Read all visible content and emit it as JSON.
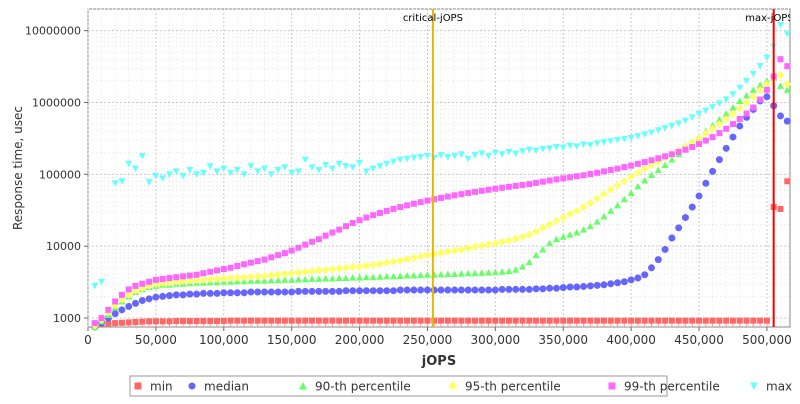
{
  "chart_data": {
    "type": "scatter",
    "title": "",
    "xlabel": "jOPS",
    "ylabel": "Response time, usec",
    "x_scale": "linear",
    "y_scale": "log",
    "xlim": [
      0,
      517000
    ],
    "ylim": [
      750,
      20000000
    ],
    "x_ticks": [
      0,
      50000,
      100000,
      150000,
      200000,
      250000,
      300000,
      350000,
      400000,
      450000,
      500000
    ],
    "x_tick_labels": [
      "0",
      "50,000",
      "100,000",
      "150,000",
      "200,000",
      "250,000",
      "300,000",
      "350,000",
      "400,000",
      "450,000",
      "500,000"
    ],
    "y_ticks": [
      1000,
      10000,
      100000,
      1000000,
      10000000
    ],
    "y_tick_labels": [
      "1000",
      "10000",
      "100000",
      "1000000",
      "10000000"
    ],
    "grid": true,
    "legend_position": "bottom",
    "markers": [
      {
        "label": "critical-jOPS",
        "x": 254000,
        "color": "#e6b800"
      },
      {
        "label": "max-jOPS",
        "x": 505000,
        "color": "#ff0000"
      }
    ],
    "x": [
      5000,
      10000,
      15000,
      20000,
      25000,
      30000,
      35000,
      40000,
      45000,
      50000,
      55000,
      60000,
      65000,
      70000,
      75000,
      80000,
      85000,
      90000,
      95000,
      100000,
      105000,
      110000,
      115000,
      120000,
      125000,
      130000,
      135000,
      140000,
      145000,
      150000,
      155000,
      160000,
      165000,
      170000,
      175000,
      180000,
      185000,
      190000,
      195000,
      200000,
      205000,
      210000,
      215000,
      220000,
      225000,
      230000,
      235000,
      240000,
      245000,
      250000,
      255000,
      260000,
      265000,
      270000,
      275000,
      280000,
      285000,
      290000,
      295000,
      300000,
      305000,
      310000,
      315000,
      320000,
      325000,
      330000,
      335000,
      340000,
      345000,
      350000,
      355000,
      360000,
      365000,
      370000,
      375000,
      380000,
      385000,
      390000,
      395000,
      400000,
      405000,
      410000,
      415000,
      420000,
      425000,
      430000,
      435000,
      440000,
      445000,
      450000,
      455000,
      460000,
      465000,
      470000,
      475000,
      480000,
      485000,
      490000,
      495000,
      500000,
      505000,
      510000,
      515000
    ],
    "series": [
      {
        "name": "min",
        "color": "#ff6666",
        "shape": "square",
        "values": [
          800,
          820,
          840,
          850,
          860,
          870,
          880,
          890,
          900,
          900,
          900,
          900,
          910,
          910,
          910,
          910,
          910,
          910,
          910,
          910,
          920,
          920,
          920,
          920,
          920,
          920,
          920,
          920,
          920,
          920,
          920,
          920,
          920,
          920,
          920,
          920,
          920,
          920,
          920,
          920,
          920,
          920,
          920,
          920,
          920,
          920,
          920,
          920,
          920,
          920,
          920,
          920,
          920,
          920,
          920,
          920,
          920,
          920,
          920,
          920,
          920,
          920,
          920,
          920,
          920,
          920,
          920,
          920,
          920,
          920,
          920,
          920,
          920,
          920,
          920,
          920,
          920,
          920,
          920,
          920,
          920,
          920,
          920,
          920,
          920,
          920,
          920,
          920,
          920,
          920,
          920,
          920,
          920,
          920,
          920,
          920,
          920,
          920,
          920,
          920,
          35000,
          33000,
          80000
        ]
      },
      {
        "name": "median",
        "color": "#6666ff",
        "shape": "circle",
        "values": [
          750,
          850,
          1000,
          1150,
          1300,
          1450,
          1600,
          1750,
          1850,
          1950,
          2000,
          2050,
          2100,
          2100,
          2150,
          2150,
          2200,
          2200,
          2200,
          2250,
          2250,
          2250,
          2250,
          2300,
          2300,
          2300,
          2300,
          2300,
          2300,
          2300,
          2350,
          2350,
          2350,
          2350,
          2350,
          2350,
          2350,
          2400,
          2400,
          2400,
          2400,
          2400,
          2400,
          2400,
          2400,
          2450,
          2450,
          2450,
          2450,
          2450,
          2450,
          2450,
          2450,
          2450,
          2450,
          2450,
          2450,
          2450,
          2450,
          2450,
          2500,
          2500,
          2500,
          2500,
          2500,
          2550,
          2550,
          2600,
          2600,
          2650,
          2700,
          2700,
          2750,
          2800,
          2850,
          2900,
          3000,
          3100,
          3200,
          3400,
          3600,
          4000,
          5000,
          6500,
          9000,
          13000,
          18000,
          25000,
          35000,
          50000,
          75000,
          110000,
          160000,
          230000,
          330000,
          470000,
          620000,
          800000,
          1050000,
          1200000,
          900000,
          650000,
          550000
        ]
      },
      {
        "name": "90-th percentile",
        "color": "#66ff66",
        "shape": "triangle-up",
        "values": [
          750,
          900,
          1100,
          1400,
          1700,
          2000,
          2300,
          2500,
          2700,
          2800,
          2900,
          2900,
          3000,
          3000,
          3050,
          3100,
          3100,
          3150,
          3150,
          3200,
          3200,
          3250,
          3250,
          3300,
          3300,
          3300,
          3350,
          3350,
          3400,
          3400,
          3450,
          3450,
          3500,
          3500,
          3550,
          3550,
          3600,
          3600,
          3650,
          3650,
          3700,
          3700,
          3750,
          3800,
          3800,
          3850,
          3900,
          3900,
          3950,
          4000,
          4000,
          4050,
          4100,
          4100,
          4150,
          4200,
          4200,
          4250,
          4300,
          4350,
          4400,
          4500,
          4700,
          5200,
          6000,
          7500,
          9000,
          11000,
          12500,
          13500,
          14500,
          15500,
          17000,
          19000,
          22000,
          26000,
          31000,
          37000,
          45000,
          55000,
          68000,
          82000,
          98000,
          115000,
          135000,
          160000,
          190000,
          225000,
          270000,
          330000,
          400000,
          480000,
          580000,
          700000,
          850000,
          1050000,
          1250000,
          1500000,
          1750000,
          2000000,
          2200000,
          1700000,
          1500000
        ]
      },
      {
        "name": "95-th percentile",
        "color": "#ffff66",
        "shape": "diamond",
        "values": [
          780,
          950,
          1200,
          1500,
          1800,
          2100,
          2400,
          2600,
          2800,
          2950,
          3050,
          3100,
          3200,
          3250,
          3300,
          3350,
          3400,
          3450,
          3500,
          3550,
          3600,
          3650,
          3700,
          3750,
          3800,
          3850,
          3950,
          4000,
          4100,
          4200,
          4300,
          4400,
          4500,
          4600,
          4700,
          4800,
          4900,
          5000,
          5100,
          5200,
          5350,
          5500,
          5700,
          5900,
          6100,
          6300,
          6600,
          6900,
          7200,
          7500,
          7800,
          8100,
          8400,
          8700,
          9000,
          9400,
          9800,
          10200,
          10600,
          11000,
          11500,
          12000,
          12700,
          13500,
          14500,
          16000,
          18000,
          20000,
          22500,
          25000,
          28000,
          31000,
          35000,
          40000,
          46000,
          53000,
          61000,
          70000,
          80000,
          92000,
          105000,
          120000,
          135000,
          150000,
          170000,
          190000,
          215000,
          245000,
          280000,
          320000,
          370000,
          430000,
          500000,
          590000,
          700000,
          830000,
          1000000,
          1200000,
          1500000,
          1800000,
          2200000,
          2400000,
          1800000
        ]
      },
      {
        "name": "99-th percentile",
        "color": "#ff66ff",
        "shape": "square",
        "values": [
          850,
          1000,
          1300,
          1700,
          2100,
          2500,
          2800,
          3000,
          3200,
          3400,
          3500,
          3600,
          3700,
          3800,
          3900,
          4000,
          4200,
          4400,
          4600,
          4800,
          5000,
          5300,
          5600,
          5900,
          6200,
          6500,
          7000,
          7500,
          8000,
          8700,
          9500,
          10500,
          11500,
          12500,
          14000,
          15500,
          17000,
          19000,
          21000,
          23000,
          25000,
          27000,
          29000,
          31000,
          33000,
          35000,
          37000,
          39000,
          41000,
          43000,
          45000,
          47000,
          49000,
          51000,
          53000,
          55000,
          57000,
          59000,
          61000,
          63000,
          65000,
          67000,
          69000,
          71000,
          73000,
          76000,
          79000,
          82000,
          85000,
          88000,
          91000,
          94000,
          97000,
          101000,
          105000,
          110000,
          115000,
          120000,
          126000,
          132000,
          140000,
          148000,
          157000,
          167000,
          178000,
          190000,
          205000,
          220000,
          240000,
          265000,
          295000,
          330000,
          375000,
          430000,
          500000,
          590000,
          700000,
          850000,
          1100000,
          1500000,
          2300000,
          4000000,
          3200000
        ]
      },
      {
        "name": "max",
        "color": "#66ffff",
        "shape": "triangle-down",
        "values": [
          2800,
          3200,
          null,
          75000,
          80000,
          140000,
          120000,
          180000,
          78000,
          95000,
          88000,
          100000,
          110000,
          95000,
          115000,
          100000,
          105000,
          130000,
          110000,
          120000,
          105000,
          115000,
          100000,
          130000,
          110000,
          120000,
          100000,
          115000,
          125000,
          105000,
          110000,
          160000,
          125000,
          115000,
          135000,
          120000,
          140000,
          130000,
          125000,
          145000,
          110000,
          120000,
          130000,
          140000,
          150000,
          160000,
          165000,
          170000,
          175000,
          180000,
          170000,
          185000,
          175000,
          180000,
          190000,
          165000,
          185000,
          195000,
          180000,
          200000,
          190000,
          205000,
          195000,
          210000,
          220000,
          215000,
          225000,
          230000,
          240000,
          235000,
          250000,
          245000,
          260000,
          255000,
          270000,
          280000,
          290000,
          300000,
          310000,
          320000,
          340000,
          360000,
          380000,
          410000,
          440000,
          470000,
          510000,
          560000,
          620000,
          690000,
          770000,
          860000,
          970000,
          1100000,
          1300000,
          1600000,
          2000000,
          2500000,
          3200000,
          4200000,
          6000000,
          12000000,
          9000000
        ]
      }
    ]
  }
}
